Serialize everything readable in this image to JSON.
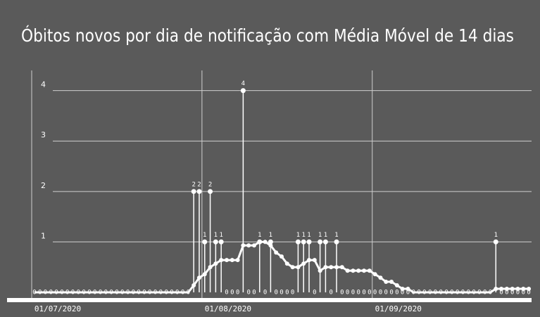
{
  "chart_data": {
    "type": "line",
    "title": "Óbitos novos por dia de notificação com Média Móvel de 14 dias",
    "categories": [
      "01/07/2020",
      null,
      null,
      null,
      null,
      null,
      null,
      null,
      null,
      null,
      null,
      null,
      null,
      null,
      null,
      null,
      null,
      null,
      null,
      null,
      null,
      null,
      null,
      null,
      null,
      null,
      null,
      null,
      null,
      null,
      null,
      "01/08/2020",
      null,
      null,
      null,
      null,
      null,
      null,
      null,
      null,
      null,
      null,
      null,
      null,
      null,
      null,
      null,
      null,
      null,
      null,
      null,
      null,
      null,
      null,
      null,
      null,
      null,
      null,
      null,
      null,
      null,
      null,
      "01/09/2020",
      null,
      null,
      null,
      null,
      null,
      null,
      null,
      null,
      null,
      null,
      null,
      null,
      null,
      null,
      null,
      null,
      null,
      null,
      null,
      null,
      null,
      null,
      null,
      null,
      null,
      null,
      null,
      null
    ],
    "series": [
      {
        "color": "#ffffff",
        "stem": true,
        "labels": true,
        "values": [
          0,
          0,
          0,
          0,
          0,
          0,
          0,
          0,
          0,
          0,
          0,
          0,
          0,
          0,
          0,
          0,
          0,
          0,
          0,
          0,
          0,
          0,
          0,
          0,
          0,
          0,
          0,
          0,
          0,
          2,
          2,
          1,
          2,
          1,
          1,
          0,
          0,
          0,
          4,
          0,
          0,
          1,
          0,
          1,
          0,
          0,
          0,
          0,
          1,
          1,
          1,
          0,
          1,
          1,
          0,
          1,
          0,
          0,
          0,
          0,
          0,
          0,
          0,
          0,
          0,
          0,
          0,
          0,
          0,
          0,
          0,
          0,
          0,
          0,
          0,
          0,
          0,
          0,
          0,
          0,
          0,
          0,
          0,
          0,
          1,
          0,
          0,
          0,
          0,
          0,
          0
        ]
      },
      {
        "color": "#ffffff",
        "stem": false,
        "labels": false,
        "values": [
          0,
          0,
          0,
          0,
          0,
          0,
          0,
          0,
          0,
          0,
          0,
          0,
          0,
          0,
          0,
          0,
          0,
          0,
          0,
          0,
          0,
          0,
          0,
          0,
          0,
          0,
          0,
          0,
          0,
          0.14,
          0.29,
          0.36,
          0.5,
          0.57,
          0.64,
          0.64,
          0.64,
          0.64,
          0.93,
          0.93,
          0.93,
          1,
          1,
          0.93,
          0.79,
          0.71,
          0.57,
          0.5,
          0.5,
          0.57,
          0.64,
          0.64,
          0.43,
          0.5,
          0.5,
          0.5,
          0.5,
          0.43,
          0.43,
          0.43,
          0.43,
          0.43,
          0.36,
          0.29,
          0.21,
          0.21,
          0.14,
          0.07,
          0.07,
          0,
          0,
          0,
          0,
          0,
          0,
          0,
          0,
          0,
          0,
          0,
          0,
          0,
          0,
          0,
          0.07,
          0.07,
          0.07,
          0.07,
          0.07,
          0.07,
          0.07
        ]
      }
    ],
    "ylim": [
      0,
      4.4
    ],
    "yticks": [
      1,
      2,
      3,
      4
    ],
    "grid": true
  }
}
